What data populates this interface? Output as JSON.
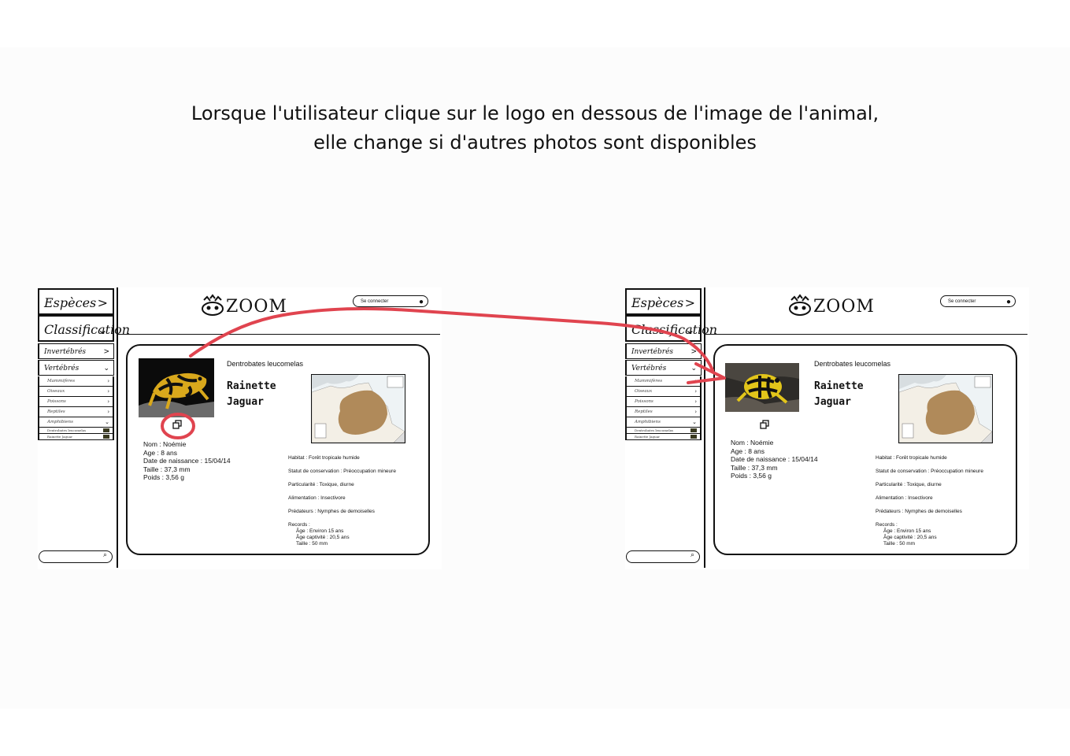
{
  "caption": {
    "line1": "Lorsque l'utilisateur clique sur le logo en dessous de l'image de l'animal,",
    "line2": "elle change si d'autres photos sont disponibles"
  },
  "app": {
    "logo_text": "ZOOM",
    "login_label": "Se connecter",
    "nav": {
      "especes": "Espèces",
      "classification": "Classification",
      "invertebres": "Invertébrés",
      "vertebres": "Vertébrés",
      "sub": [
        "Mammifères",
        "Oiseaux",
        "Poissons",
        "Reptiles",
        "Amphibiens"
      ],
      "leaf": [
        "Dentrobates leucomelas",
        "Rainette Jaguar"
      ]
    },
    "card": {
      "scientific_name": "Dentrobates leucomelas",
      "common_name_1": "Rainette",
      "common_name_2": "Jaguar",
      "nom": "Nom : Noémie",
      "age": "Age : 8 ans",
      "naissance": "Date de naissance : 15/04/14",
      "taille": "Taille : 37,3 mm",
      "poids": "Poids : 3,56 g",
      "habitat": "Habitat : Forêt tropicale humide",
      "statut": "Statut de conservation : Préoccupation mineure",
      "particularite": "Particularité : Toxique, diurne",
      "alimentation": "Alimentation : Insectivore",
      "predateurs": "Prédateurs : Nymphes de demoiselles",
      "records_title": "Records :",
      "record_age": "Âge : Environ 15 ans",
      "record_captivite": "Âge captivité : 20,5 ans",
      "record_taille": "Taille : 50 mm"
    }
  },
  "colors": {
    "annotation_red": "#e0444f",
    "map_land": "#b08a5a"
  },
  "icons": [
    "paw-logo-icon",
    "user-icon",
    "search-icon",
    "photo-switch-icon",
    "chevron-right-icon",
    "chevron-down-icon"
  ]
}
